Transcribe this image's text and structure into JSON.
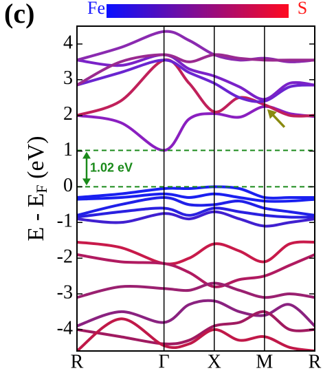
{
  "chart_data": {
    "type": "line",
    "panel_label": "(c)",
    "colorbar": {
      "left_label": "Fe",
      "right_label": "S",
      "colors": [
        "#0a10ff",
        "#ff0a20"
      ]
    },
    "y_label": [
      "E - E",
      "F",
      " (eV)"
    ],
    "xlim": [
      0,
      2.366
    ],
    "xticks": [
      {
        "value": 0,
        "label": "R"
      },
      {
        "value": 0.866,
        "label": "Γ"
      },
      {
        "value": 1.366,
        "label": "X"
      },
      {
        "value": 1.866,
        "label": "M"
      },
      {
        "value": 2.366,
        "label": "R"
      }
    ],
    "ylim": [
      -4.6,
      4.5
    ],
    "yticks": [
      -4,
      -3,
      -2,
      -1,
      0,
      1,
      2,
      3,
      4
    ],
    "hlines": [
      0,
      1.02
    ],
    "hline_color": "#1a8a1a",
    "gap_annotation": "1.02 eV",
    "arrow_color": "#8a8a10",
    "arrow_at": [
      1.866,
      2.25
    ],
    "x": [
      0,
      0.433,
      0.866,
      1.116,
      1.366,
      1.616,
      1.866,
      2.116,
      2.366
    ],
    "series": [
      {
        "color": "#8a1fc0",
        "values": [
          2.0,
          1.8,
          1.02,
          1.9,
          2.05,
          1.95,
          2.25,
          2.05,
          1.97
        ]
      },
      {
        "color": "#c0205a",
        "values": [
          2.0,
          2.4,
          3.55,
          2.9,
          2.1,
          2.5,
          2.3,
          2.0,
          2.0
        ]
      },
      {
        "color": "#6a25d0",
        "values": [
          2.85,
          3.2,
          3.55,
          3.2,
          2.9,
          2.5,
          2.4,
          2.8,
          2.85
        ]
      },
      {
        "color": "#7a22c8",
        "values": [
          3.55,
          3.4,
          3.7,
          3.3,
          3.1,
          2.8,
          2.45,
          2.9,
          2.85
        ]
      },
      {
        "color": "#8a2ab0",
        "values": [
          3.55,
          3.9,
          4.35,
          4.1,
          3.7,
          3.55,
          3.6,
          3.5,
          3.55
        ]
      },
      {
        "color": "#9a2a90",
        "values": [
          2.85,
          3.5,
          3.7,
          3.5,
          3.7,
          3.6,
          3.55,
          3.55,
          3.55
        ]
      },
      {
        "color": "#1a20f0",
        "values": [
          -0.3,
          -0.2,
          -0.05,
          -0.05,
          0.0,
          -0.05,
          -0.3,
          -0.3,
          -0.3
        ]
      },
      {
        "color": "#1a20f0",
        "values": [
          -0.35,
          -0.3,
          -0.2,
          -0.3,
          -0.2,
          -0.3,
          -0.4,
          -0.4,
          -0.35
        ]
      },
      {
        "color": "#2020e8",
        "values": [
          -0.8,
          -0.5,
          -0.3,
          -0.5,
          -0.5,
          -0.4,
          -0.6,
          -0.7,
          -0.8
        ]
      },
      {
        "color": "#2a20e0",
        "values": [
          -0.85,
          -0.7,
          -0.6,
          -0.8,
          -0.6,
          -0.7,
          -0.8,
          -0.85,
          -0.85
        ]
      },
      {
        "color": "#4020d0",
        "values": [
          -0.9,
          -1.0,
          -0.75,
          -0.9,
          -0.7,
          -0.9,
          -1.1,
          -1.0,
          -0.9
        ]
      },
      {
        "color": "#c81a4a",
        "values": [
          -1.55,
          -1.7,
          -2.15,
          -2.0,
          -1.6,
          -1.8,
          -2.1,
          -1.6,
          -1.55
        ]
      },
      {
        "color": "#b01a60",
        "values": [
          -1.9,
          -2.1,
          -2.15,
          -2.4,
          -2.8,
          -2.6,
          -2.5,
          -2.2,
          -1.9
        ]
      },
      {
        "color": "#9a2070",
        "values": [
          -3.1,
          -2.8,
          -2.85,
          -2.9,
          -2.7,
          -2.9,
          -3.1,
          -3.0,
          -3.1
        ]
      },
      {
        "color": "#8a2280",
        "values": [
          -3.9,
          -3.5,
          -3.8,
          -3.3,
          -3.2,
          -3.5,
          -3.6,
          -3.3,
          -3.9
        ]
      },
      {
        "color": "#a01a60",
        "values": [
          -4.0,
          -4.2,
          -4.4,
          -4.3,
          -3.9,
          -3.8,
          -3.5,
          -4.0,
          -4.0
        ]
      },
      {
        "color": "#c01848",
        "values": [
          -4.6,
          -3.7,
          -4.45,
          -4.4,
          -4.0,
          -4.3,
          -4.2,
          -4.5,
          -4.6
        ]
      }
    ]
  }
}
